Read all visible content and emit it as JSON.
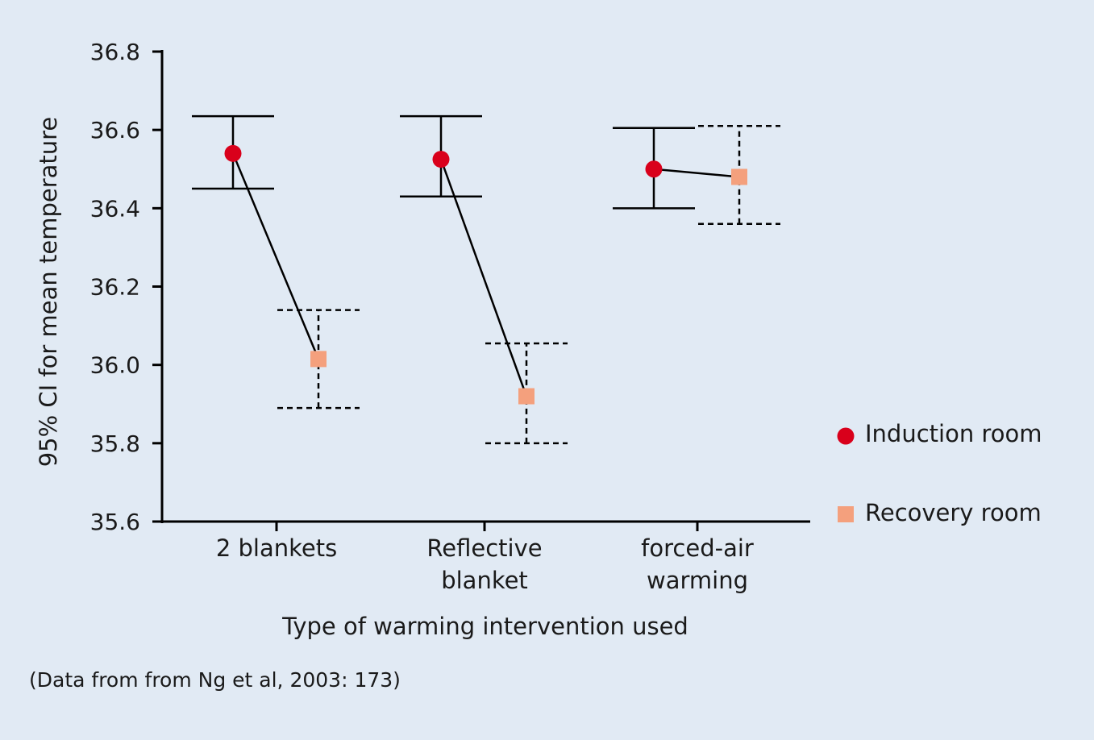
{
  "chart_data": {
    "type": "error-bar",
    "categories": [
      [
        "2 blankets"
      ],
      [
        "Reflective",
        "blanket"
      ],
      [
        "forced-air",
        "warming"
      ]
    ],
    "series": [
      {
        "name": "Induction room",
        "color": "#d9001b",
        "marker": "circle",
        "line_style": "solid",
        "values": [
          36.54,
          36.525,
          36.5
        ],
        "ci_low": [
          36.45,
          36.43,
          36.4
        ],
        "ci_high": [
          36.635,
          36.635,
          36.605
        ]
      },
      {
        "name": "Recovery room",
        "color": "#f4a07d",
        "marker": "square",
        "line_style": "dashed",
        "values": [
          36.015,
          35.92,
          36.48
        ],
        "ci_low": [
          35.89,
          35.8,
          36.36
        ],
        "ci_high": [
          36.14,
          36.055,
          36.61
        ]
      }
    ],
    "connector": "line joins induction and recovery means within each category",
    "ylabel": "95% CI for mean temperature",
    "xlabel": "Type of warming intervention used",
    "ylim": [
      35.6,
      36.8
    ],
    "yticks": [
      "36.8",
      "36.6",
      "36.4",
      "36.2",
      "36.0",
      "35.8",
      "35.6"
    ],
    "ytick_values": [
      36.8,
      36.6,
      36.4,
      36.2,
      36.0,
      35.8,
      35.6
    ],
    "grid": false,
    "legend_position": "right"
  },
  "source_note": "(Data from from Ng et al, 2003: 173)",
  "colors": {
    "background": "#e1eaf4",
    "axis": "#000000"
  }
}
